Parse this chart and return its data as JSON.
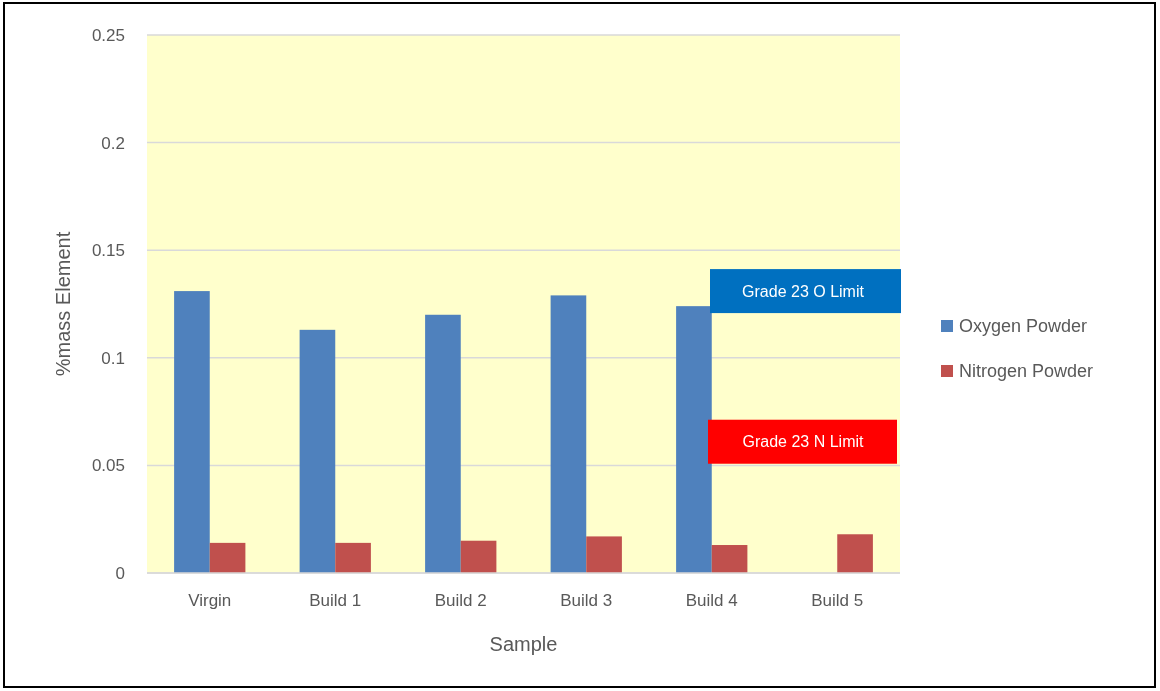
{
  "chart_data": {
    "type": "bar",
    "xlabel": "Sample",
    "ylabel": "%mass Element",
    "categories": [
      "Virgin",
      "Build 1",
      "Build 2",
      "Build 3",
      "Build 4",
      "Build 5"
    ],
    "series": [
      {
        "name": "Oxygen Powder",
        "color": "#4f81bd",
        "values": [
          0.131,
          0.113,
          0.12,
          0.129,
          0.124,
          null
        ]
      },
      {
        "name": "Nitrogen Powder",
        "color": "#c0504d",
        "values": [
          0.014,
          0.014,
          0.015,
          0.017,
          0.013,
          0.018
        ]
      }
    ],
    "ylim": [
      0,
      0.25
    ],
    "yticks": [
      0,
      0.05,
      0.1,
      0.15,
      0.2,
      0.25
    ],
    "grid": "y",
    "legend": "right",
    "annotations": [
      "Grade 23 O Limit",
      "Grade 23 N Limit"
    ]
  }
}
